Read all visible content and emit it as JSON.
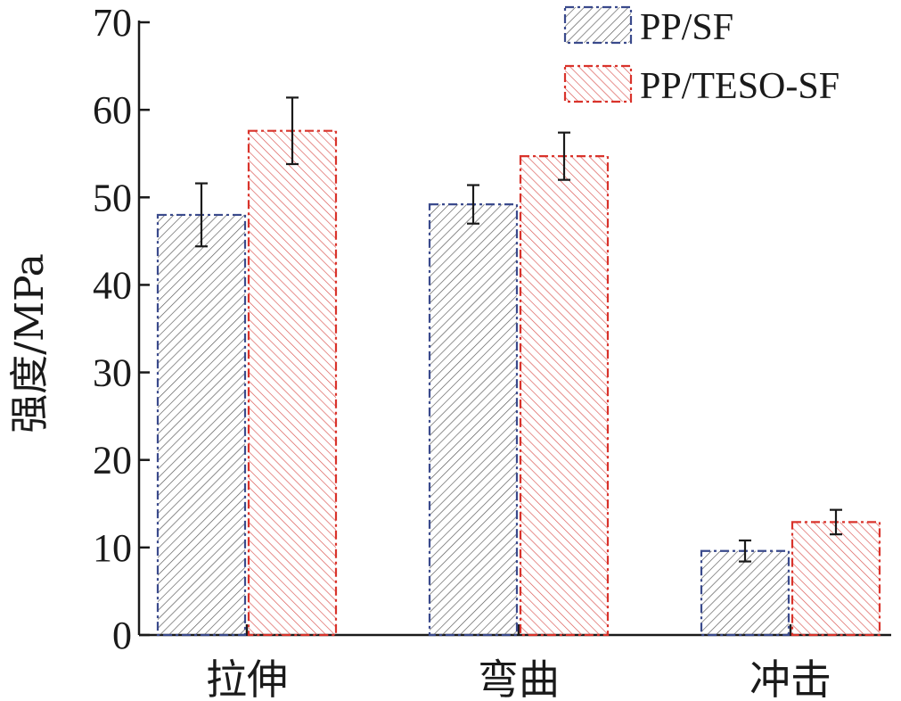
{
  "chart_data": {
    "type": "bar",
    "categories": [
      "拉伸",
      "弯曲",
      "冲击"
    ],
    "series": [
      {
        "name": "PP/SF",
        "values": [
          48.0,
          49.2,
          9.6
        ],
        "errors": [
          3.6,
          2.2,
          1.2
        ],
        "color": "#3a4a8c",
        "hatch": "forward-diagonal"
      },
      {
        "name": "PP/TESO-SF",
        "values": [
          57.6,
          54.7,
          12.9
        ],
        "errors": [
          3.8,
          2.7,
          1.4
        ],
        "color": "#d9332b",
        "hatch": "backward-diagonal"
      }
    ],
    "title": "",
    "xlabel": "",
    "ylabel": "强度/MPa",
    "ylim": [
      0,
      70
    ],
    "yticks": [
      0,
      10,
      20,
      30,
      40,
      50,
      60,
      70
    ],
    "grid": false,
    "legend_position": "top-right"
  }
}
